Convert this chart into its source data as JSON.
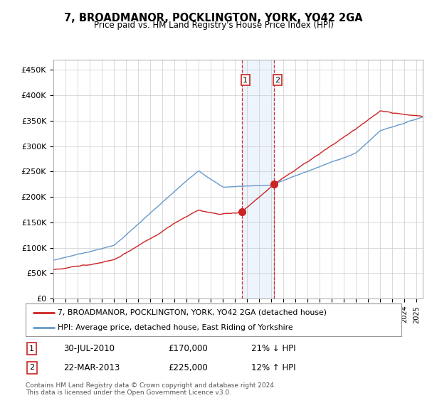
{
  "title": "7, BROADMANOR, POCKLINGTON, YORK, YO42 2GA",
  "subtitle": "Price paid vs. HM Land Registry's House Price Index (HPI)",
  "ylim": [
    0,
    470000
  ],
  "xlim_start": 1995.0,
  "xlim_end": 2025.5,
  "hpi_color": "#6699cc",
  "price_color": "#cc2222",
  "highlight_color": "#ddeeff",
  "transaction1_date": "30-JUL-2010",
  "transaction1_price": 170000,
  "transaction1_pct": "21% ↓ HPI",
  "transaction1_year": 2010.57,
  "transaction2_date": "22-MAR-2013",
  "transaction2_price": 225000,
  "transaction2_pct": "12% ↑ HPI",
  "transaction2_year": 2013.22,
  "legend_label1": "7, BROADMANOR, POCKLINGTON, YORK, YO42 2GA (detached house)",
  "legend_label2": "HPI: Average price, detached house, East Riding of Yorkshire",
  "footer": "Contains HM Land Registry data © Crown copyright and database right 2024.\nThis data is licensed under the Open Government Licence v3.0.",
  "background_color": "#ffffff",
  "grid_color": "#cccccc"
}
